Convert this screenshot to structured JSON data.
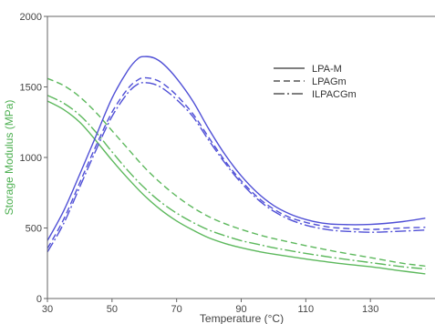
{
  "chart_data": {
    "type": "line",
    "xlabel": "Temperature (°C)",
    "ylabel": "Storage Modulus (MPa)",
    "xlim": [
      30,
      150
    ],
    "ylim": [
      0,
      2000
    ],
    "x_ticks": [
      "30",
      "50",
      "70",
      "90",
      "110",
      "130"
    ],
    "y_ticks": [
      "0",
      "500",
      "1000",
      "1500",
      "2000"
    ],
    "grid": false,
    "legend_position": "top-right",
    "ylabel_color": "#4caf50",
    "colors": {
      "green": "#5cb85c",
      "blue": "#4f4fd6"
    },
    "legend": [
      {
        "label": "LPA-M",
        "style": "solid"
      },
      {
        "label": "LPAGm",
        "style": "dashed"
      },
      {
        "label": "ILPACGm",
        "style": "dashdot"
      }
    ],
    "series": [
      {
        "color": "green",
        "style": "solid",
        "points": [
          [
            30,
            1400
          ],
          [
            35,
            1340
          ],
          [
            40,
            1250
          ],
          [
            45,
            1120
          ],
          [
            50,
            980
          ],
          [
            55,
            850
          ],
          [
            60,
            730
          ],
          [
            65,
            630
          ],
          [
            70,
            550
          ],
          [
            75,
            485
          ],
          [
            80,
            430
          ],
          [
            85,
            390
          ],
          [
            90,
            360
          ],
          [
            95,
            335
          ],
          [
            100,
            315
          ],
          [
            110,
            280
          ],
          [
            120,
            250
          ],
          [
            130,
            225
          ],
          [
            140,
            195
          ],
          [
            147,
            175
          ]
        ]
      },
      {
        "color": "green",
        "style": "dashed",
        "points": [
          [
            30,
            1560
          ],
          [
            35,
            1510
          ],
          [
            40,
            1430
          ],
          [
            45,
            1320
          ],
          [
            50,
            1190
          ],
          [
            55,
            1060
          ],
          [
            60,
            930
          ],
          [
            65,
            820
          ],
          [
            70,
            725
          ],
          [
            75,
            645
          ],
          [
            80,
            580
          ],
          [
            85,
            530
          ],
          [
            90,
            490
          ],
          [
            95,
            455
          ],
          [
            100,
            425
          ],
          [
            110,
            375
          ],
          [
            120,
            330
          ],
          [
            130,
            290
          ],
          [
            140,
            250
          ],
          [
            147,
            230
          ]
        ]
      },
      {
        "color": "green",
        "style": "dashdot",
        "points": [
          [
            30,
            1440
          ],
          [
            35,
            1385
          ],
          [
            40,
            1300
          ],
          [
            45,
            1180
          ],
          [
            50,
            1040
          ],
          [
            55,
            905
          ],
          [
            60,
            785
          ],
          [
            65,
            685
          ],
          [
            70,
            605
          ],
          [
            75,
            540
          ],
          [
            80,
            485
          ],
          [
            85,
            445
          ],
          [
            90,
            410
          ],
          [
            95,
            385
          ],
          [
            100,
            360
          ],
          [
            110,
            320
          ],
          [
            120,
            285
          ],
          [
            130,
            255
          ],
          [
            140,
            225
          ],
          [
            147,
            210
          ]
        ]
      },
      {
        "color": "blue",
        "style": "solid",
        "points": [
          [
            30,
            410
          ],
          [
            35,
            620
          ],
          [
            40,
            880
          ],
          [
            45,
            1150
          ],
          [
            50,
            1420
          ],
          [
            55,
            1620
          ],
          [
            58,
            1700
          ],
          [
            60,
            1715
          ],
          [
            63,
            1705
          ],
          [
            66,
            1660
          ],
          [
            70,
            1560
          ],
          [
            75,
            1400
          ],
          [
            80,
            1200
          ],
          [
            85,
            1020
          ],
          [
            90,
            870
          ],
          [
            95,
            750
          ],
          [
            100,
            660
          ],
          [
            105,
            600
          ],
          [
            110,
            560
          ],
          [
            115,
            535
          ],
          [
            120,
            525
          ],
          [
            130,
            525
          ],
          [
            140,
            545
          ],
          [
            147,
            570
          ]
        ]
      },
      {
        "color": "blue",
        "style": "dashed",
        "points": [
          [
            30,
            355
          ],
          [
            35,
            560
          ],
          [
            40,
            820
          ],
          [
            45,
            1080
          ],
          [
            50,
            1320
          ],
          [
            55,
            1490
          ],
          [
            58,
            1550
          ],
          [
            60,
            1565
          ],
          [
            63,
            1555
          ],
          [
            66,
            1520
          ],
          [
            70,
            1440
          ],
          [
            75,
            1310
          ],
          [
            80,
            1140
          ],
          [
            85,
            975
          ],
          [
            90,
            835
          ],
          [
            95,
            720
          ],
          [
            100,
            635
          ],
          [
            105,
            575
          ],
          [
            110,
            540
          ],
          [
            115,
            515
          ],
          [
            120,
            500
          ],
          [
            130,
            490
          ],
          [
            140,
            500
          ],
          [
            147,
            505
          ]
        ]
      },
      {
        "color": "blue",
        "style": "dashdot",
        "points": [
          [
            30,
            330
          ],
          [
            35,
            530
          ],
          [
            40,
            790
          ],
          [
            45,
            1050
          ],
          [
            50,
            1290
          ],
          [
            55,
            1460
          ],
          [
            58,
            1520
          ],
          [
            60,
            1530
          ],
          [
            63,
            1520
          ],
          [
            66,
            1485
          ],
          [
            70,
            1410
          ],
          [
            75,
            1290
          ],
          [
            80,
            1120
          ],
          [
            85,
            960
          ],
          [
            90,
            820
          ],
          [
            95,
            705
          ],
          [
            100,
            620
          ],
          [
            105,
            560
          ],
          [
            110,
            520
          ],
          [
            115,
            495
          ],
          [
            120,
            480
          ],
          [
            130,
            470
          ],
          [
            140,
            478
          ],
          [
            147,
            485
          ]
        ]
      }
    ]
  }
}
